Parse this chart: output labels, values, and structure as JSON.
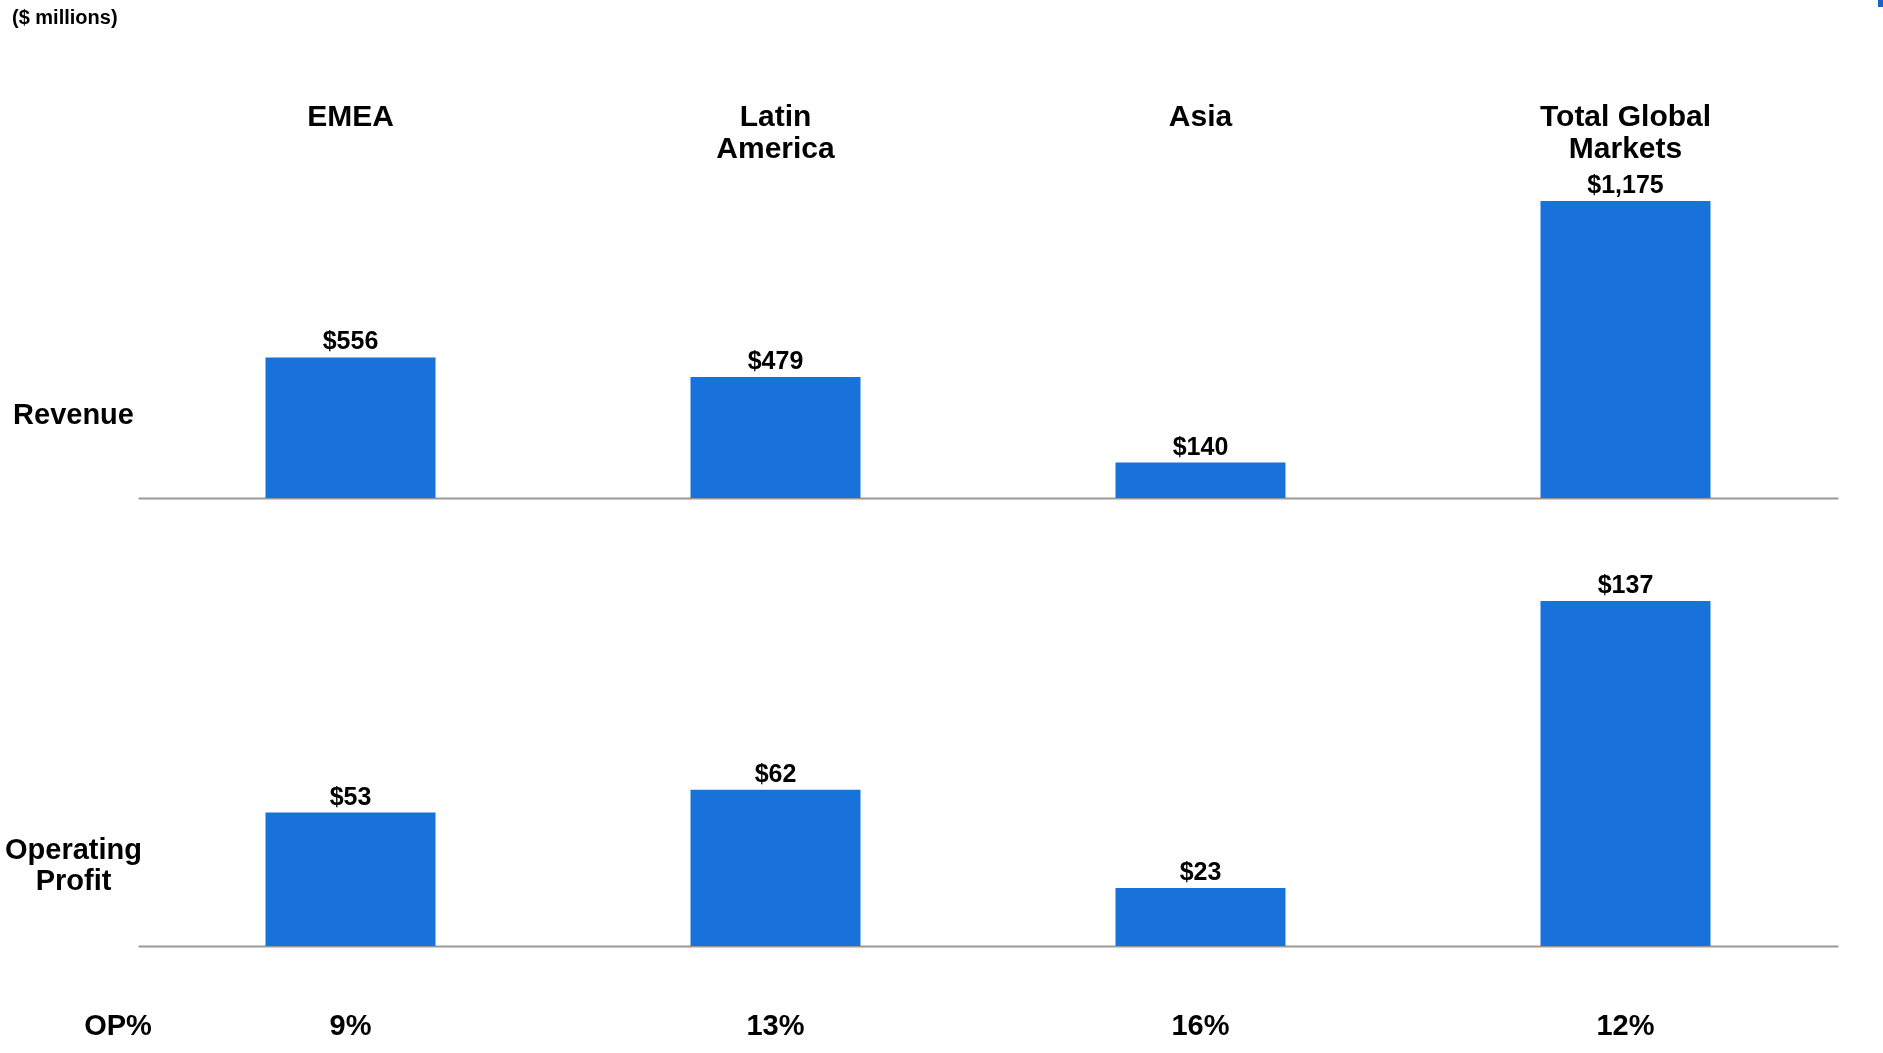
{
  "chart_data": [
    {
      "type": "bar",
      "ylabel": "Revenue",
      "categories": [
        "EMEA",
        "Latin America",
        "Asia",
        "Total Global Markets"
      ],
      "values": [
        556,
        479,
        140,
        1175
      ],
      "value_labels": [
        "$556",
        "$479",
        "$140",
        "$1,175"
      ],
      "color": "#1872d9",
      "tick_labels": "x",
      "annotations": [
        "($ millions)"
      ]
    },
    {
      "type": "bar",
      "ylabel": "Operating Profit",
      "categories": [
        "EMEA",
        "Latin America",
        "Asia",
        "Total Global Markets"
      ],
      "values": [
        53,
        62,
        23,
        137
      ],
      "value_labels": [
        "$53",
        "$62",
        "$23",
        "$137"
      ],
      "color": "#1872d9",
      "tick_labels": false,
      "annotations": [
        "OP%",
        "9%",
        "13%",
        "16%",
        "12%"
      ]
    }
  ]
}
